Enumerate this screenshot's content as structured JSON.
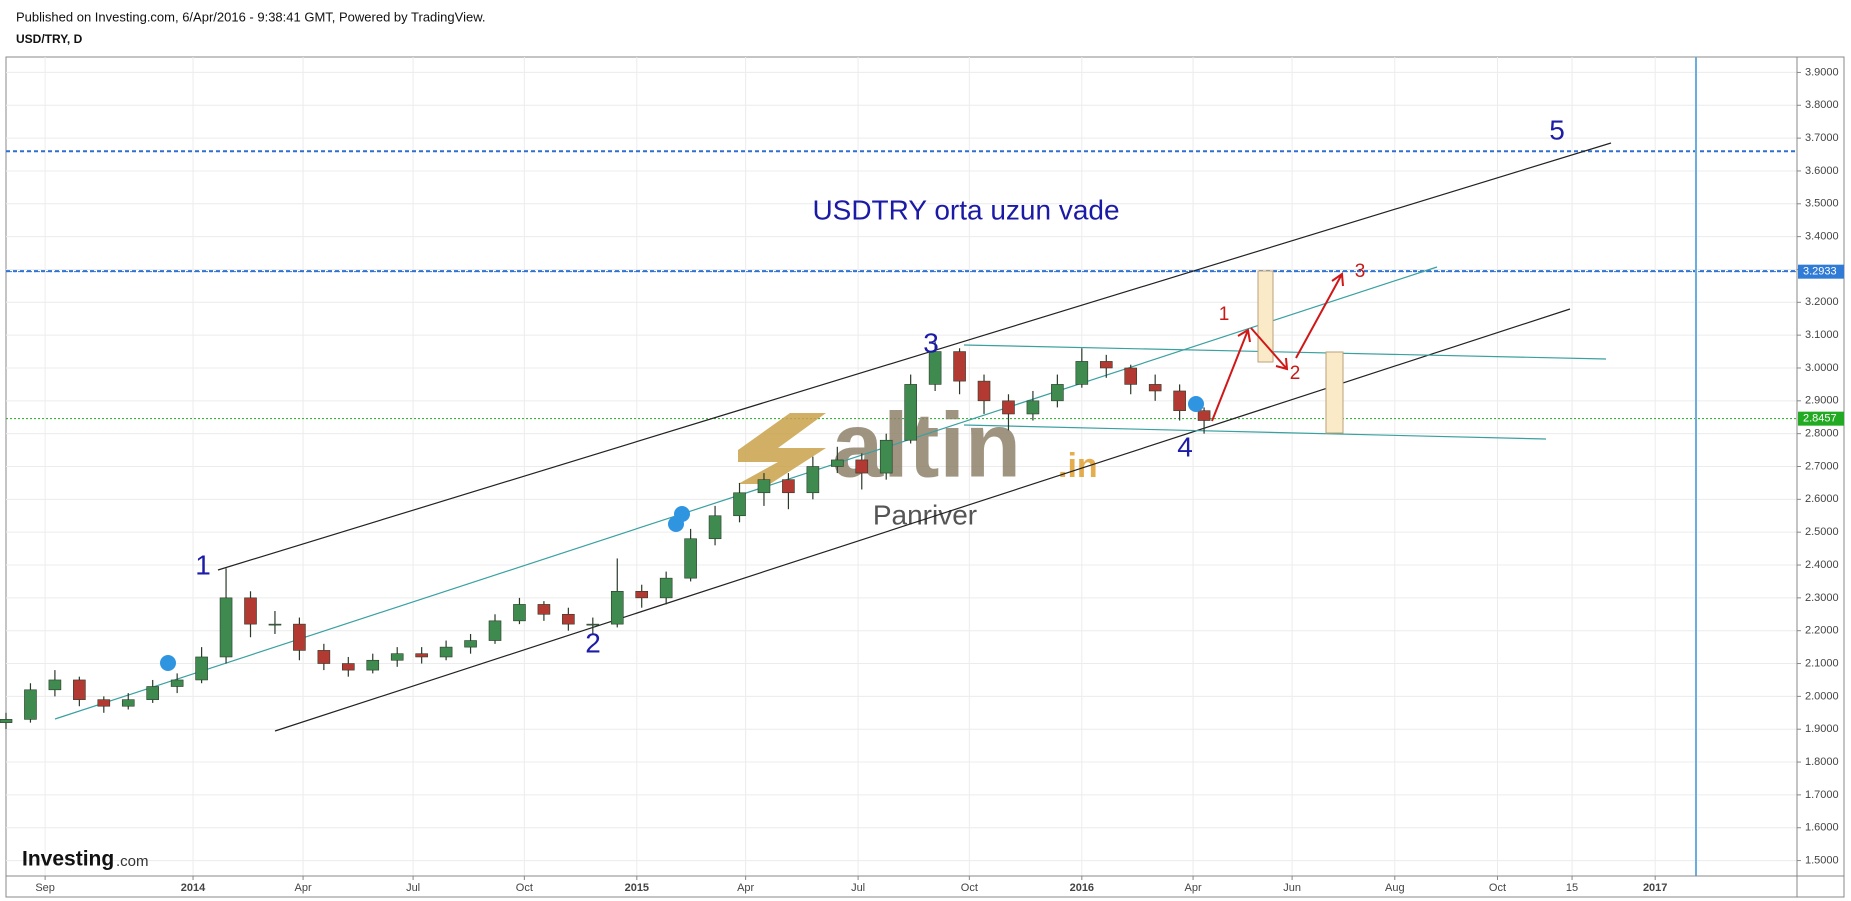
{
  "header": {
    "published": "Published on Investing.com, 6/Apr/2016 - 9:38:41 GMT, Powered by TradingView.",
    "symbol": "USD/TRY, D"
  },
  "chart_data": {
    "type": "candlestick",
    "title": "USDTRY orta uzun vade",
    "x": [
      0,
      20,
      40,
      60,
      80,
      100,
      120,
      140,
      160,
      180,
      200,
      220,
      240,
      260,
      280,
      300,
      320,
      340,
      360,
      380,
      400,
      420,
      440,
      460,
      480,
      500,
      520,
      540,
      560,
      580,
      600,
      620,
      640,
      660,
      680,
      700,
      720,
      740,
      760,
      780,
      800,
      820,
      840,
      860,
      880,
      900,
      920,
      940,
      960,
      980
    ],
    "open": [
      1.92,
      1.93,
      2.02,
      2.05,
      1.99,
      1.97,
      1.99,
      2.03,
      2.05,
      2.12,
      2.3,
      2.22,
      2.22,
      2.14,
      2.1,
      2.08,
      2.11,
      2.13,
      2.12,
      2.15,
      2.17,
      2.23,
      2.28,
      2.25,
      2.22,
      2.22,
      2.32,
      2.3,
      2.36,
      2.48,
      2.55,
      2.62,
      2.66,
      2.62,
      2.7,
      2.72,
      2.68,
      2.78,
      2.95,
      3.05,
      2.96,
      2.9,
      2.86,
      2.9,
      2.95,
      3.02,
      3.0,
      2.95,
      2.93,
      2.87
    ],
    "high": [
      1.95,
      2.04,
      2.08,
      2.06,
      2.0,
      2.01,
      2.05,
      2.07,
      2.15,
      2.39,
      2.32,
      2.26,
      2.24,
      2.16,
      2.12,
      2.13,
      2.15,
      2.15,
      2.17,
      2.19,
      2.25,
      2.3,
      2.29,
      2.27,
      2.24,
      2.42,
      2.34,
      2.38,
      2.51,
      2.58,
      2.65,
      2.68,
      2.68,
      2.73,
      2.76,
      2.74,
      2.8,
      2.98,
      3.08,
      3.06,
      2.98,
      2.92,
      2.93,
      2.98,
      3.06,
      3.04,
      3.01,
      2.98,
      2.95,
      2.88
    ],
    "low": [
      1.9,
      1.92,
      2.0,
      1.97,
      1.95,
      1.96,
      1.98,
      2.01,
      2.04,
      2.1,
      2.18,
      2.19,
      2.11,
      2.08,
      2.06,
      2.07,
      2.09,
      2.1,
      2.11,
      2.13,
      2.16,
      2.22,
      2.23,
      2.2,
      2.19,
      2.21,
      2.27,
      2.28,
      2.35,
      2.46,
      2.53,
      2.58,
      2.57,
      2.6,
      2.68,
      2.63,
      2.66,
      2.77,
      2.93,
      2.92,
      2.86,
      2.81,
      2.84,
      2.88,
      2.94,
      2.97,
      2.92,
      2.9,
      2.84,
      2.8
    ],
    "close": [
      1.93,
      2.02,
      2.05,
      1.99,
      1.97,
      1.99,
      2.03,
      2.05,
      2.12,
      2.3,
      2.22,
      2.22,
      2.14,
      2.1,
      2.08,
      2.11,
      2.13,
      2.12,
      2.15,
      2.17,
      2.23,
      2.28,
      2.25,
      2.22,
      2.22,
      2.32,
      2.3,
      2.36,
      2.48,
      2.55,
      2.62,
      2.66,
      2.62,
      2.7,
      2.72,
      2.68,
      2.78,
      2.95,
      3.05,
      2.96,
      2.9,
      2.86,
      2.9,
      2.95,
      3.02,
      3.0,
      2.95,
      2.93,
      2.87,
      2.84
    ],
    "up_color": "#3f8a4f",
    "down_color": "#b33a32",
    "wick_color": "#2a3a2a",
    "xlim": [
      0,
      1465
    ],
    "xticks": [
      {
        "value": 32,
        "label": "Sep"
      },
      {
        "value": 153,
        "label": "2014"
      },
      {
        "value": 243,
        "label": "Apr"
      },
      {
        "value": 333,
        "label": "Jul"
      },
      {
        "value": 424,
        "label": "Oct"
      },
      {
        "value": 516,
        "label": "2015"
      },
      {
        "value": 605,
        "label": "Apr"
      },
      {
        "value": 697,
        "label": "Jul"
      },
      {
        "value": 788,
        "label": "Oct"
      },
      {
        "value": 880,
        "label": "2016"
      },
      {
        "value": 971,
        "label": "Apr"
      },
      {
        "value": 1052,
        "label": "Jun"
      },
      {
        "value": 1136,
        "label": "Aug"
      },
      {
        "value": 1220,
        "label": "Oct"
      },
      {
        "value": 1281,
        "label": "15"
      },
      {
        "value": 1349,
        "label": "2017"
      }
    ],
    "ylim": [
      1.453,
      3.947
    ],
    "yticks": [
      {
        "value": 1.5,
        "label": "1.5000"
      },
      {
        "value": 1.6,
        "label": "1.6000"
      },
      {
        "value": 1.7,
        "label": "1.7000"
      },
      {
        "value": 1.8,
        "label": "1.8000"
      },
      {
        "value": 1.9,
        "label": "1.9000"
      },
      {
        "value": 2,
        "label": "2.0000"
      },
      {
        "value": 2.1,
        "label": "2.1000"
      },
      {
        "value": 2.2,
        "label": "2.2000"
      },
      {
        "value": 2.3,
        "label": "2.3000"
      },
      {
        "value": 2.4,
        "label": "2.4000"
      },
      {
        "value": 2.5,
        "label": "2.5000"
      },
      {
        "value": 2.6,
        "label": "2.6000"
      },
      {
        "value": 2.7,
        "label": "2.7000"
      },
      {
        "value": 2.8,
        "label": "2.8000"
      },
      {
        "value": 2.9,
        "label": "2.9000"
      },
      {
        "value": 3,
        "label": "3.0000"
      },
      {
        "value": 3.1,
        "label": "3.1000"
      },
      {
        "value": 3.2,
        "label": "3.2000"
      },
      {
        "value": 3.3,
        "label": "3.3000"
      },
      {
        "value": 3.4,
        "label": "3.4000"
      },
      {
        "value": 3.5,
        "label": "3.5000"
      },
      {
        "value": 3.6,
        "label": "3.6000"
      },
      {
        "value": 3.7,
        "label": "3.7000"
      },
      {
        "value": 3.8,
        "label": "3.8000"
      },
      {
        "value": 3.9,
        "label": "3.9000"
      }
    ],
    "grid": true,
    "levels": [
      {
        "value": 3.66,
        "color": "#2f6fcf"
      },
      {
        "value": 3.295,
        "color": "#2f6fcf"
      }
    ],
    "price_markers": [
      {
        "value": 3.2933,
        "color": "#2f7bd6"
      },
      {
        "value": 2.8457,
        "color": "#22aa22"
      }
    ],
    "annotations": {
      "waves": [
        "1",
        "2",
        "3",
        "4",
        "5"
      ],
      "projection": [
        "1",
        "2",
        "3"
      ],
      "watermark": "altin",
      "watermark_suffix": ".in",
      "author": "Panriver",
      "logo": "Investing",
      "logo_suffix": ".com"
    }
  }
}
